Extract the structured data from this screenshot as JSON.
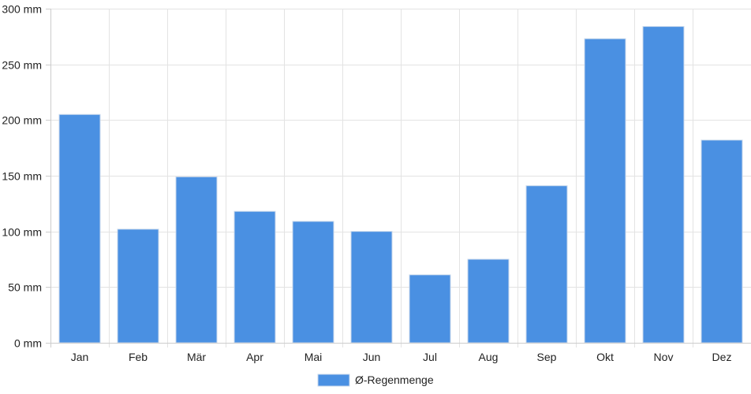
{
  "chart_data": {
    "type": "bar",
    "categories": [
      "Jan",
      "Feb",
      "Mär",
      "Apr",
      "Mai",
      "Jun",
      "Jul",
      "Aug",
      "Sep",
      "Okt",
      "Nov",
      "Dez"
    ],
    "series": [
      {
        "name": "Ø-Regenmenge",
        "values": [
          205,
          102,
          149,
          118,
          109,
          100,
          61,
          75,
          141,
          273,
          284,
          182
        ],
        "color": "#4a90e2"
      }
    ],
    "title": "",
    "xlabel": "",
    "ylabel": "",
    "ylim": [
      0,
      300
    ],
    "yticks": [
      0,
      50,
      100,
      150,
      200,
      250,
      300
    ],
    "y_unit_suffix": " mm",
    "grid": true,
    "legend_position": "bottom-center"
  }
}
